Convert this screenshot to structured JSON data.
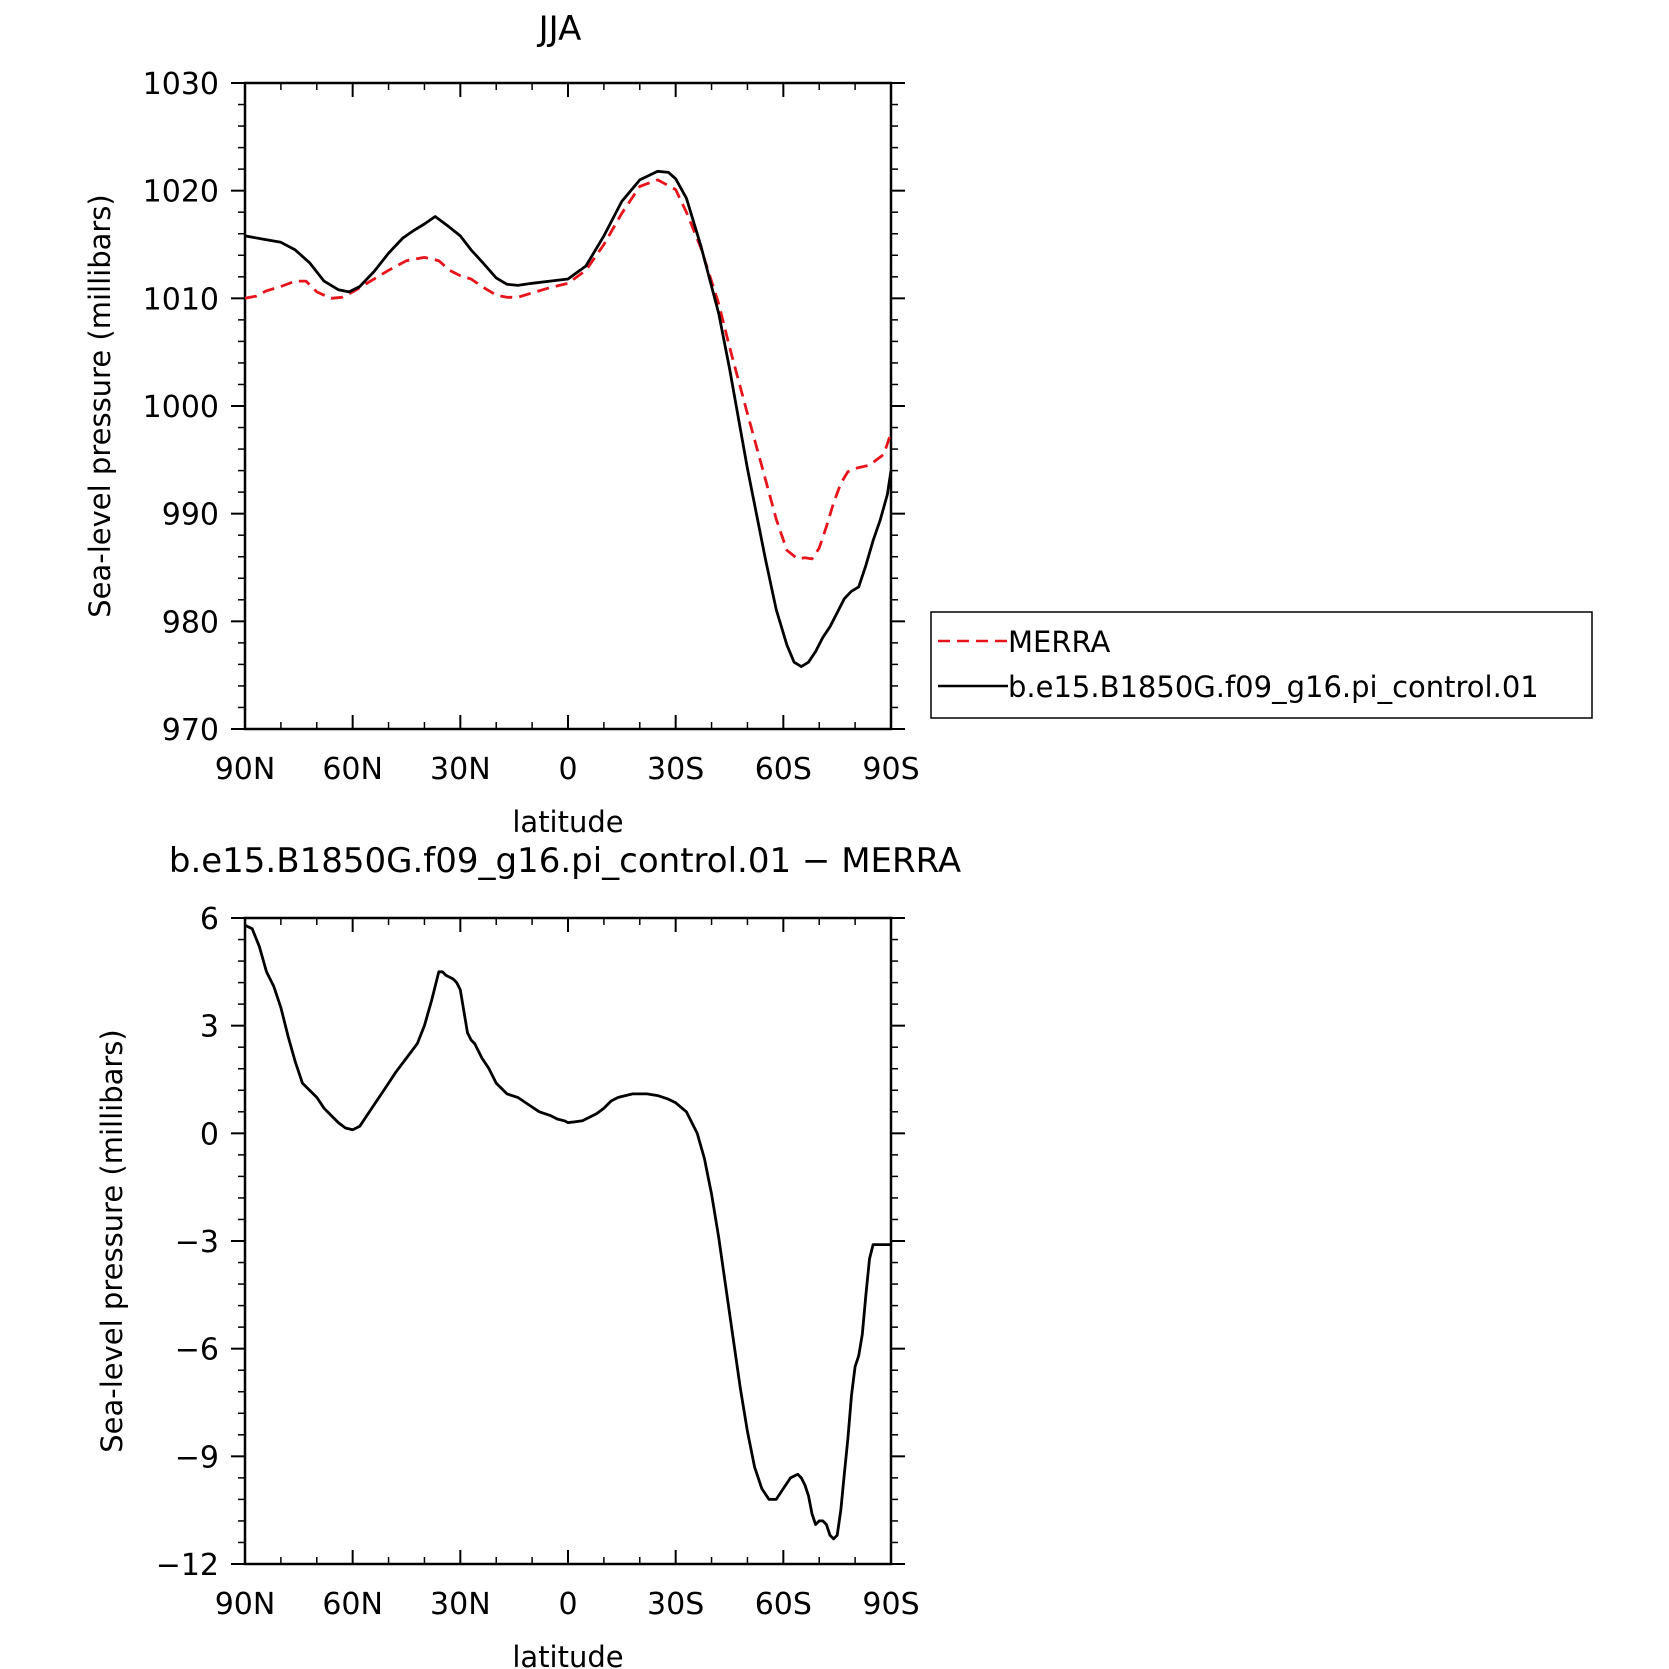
{
  "chart_data": [
    {
      "type": "line",
      "title": "JJA",
      "xlabel": "latitude",
      "ylabel": "Sea-level pressure (millibars)",
      "xlim": [
        90,
        -90
      ],
      "ylim": [
        970,
        1030
      ],
      "xticks": [
        90,
        60,
        30,
        0,
        -30,
        -60,
        -90
      ],
      "xtick_labels": [
        "90N",
        "60N",
        "30N",
        "0",
        "30S",
        "60S",
        "90S"
      ],
      "yticks": [
        970,
        980,
        990,
        1000,
        1010,
        1020,
        1030
      ],
      "ytick_labels": [
        "970",
        "980",
        "990",
        "1000",
        "1010",
        "1020",
        "1030"
      ],
      "legend": "right",
      "series": [
        {
          "name": "MERRA",
          "color": "#e8141c",
          "dash": "dashed",
          "x": [
            90,
            87,
            84,
            80,
            76,
            73,
            70,
            66,
            63,
            60,
            55,
            50,
            45,
            40,
            36,
            33,
            30,
            27,
            24,
            20,
            17,
            14,
            10,
            5,
            0,
            -5,
            -10,
            -15,
            -20,
            -25,
            -30,
            -33,
            -37,
            -42,
            -45,
            -50,
            -55,
            -58,
            -61,
            -64,
            -66,
            -68,
            -70,
            -72,
            -74,
            -76,
            -78,
            -80,
            -84,
            -88,
            -90
          ],
          "y": [
            1010,
            1010.2,
            1010.7,
            1011.1,
            1011.6,
            1011.6,
            1010.6,
            1010,
            1010.1,
            1010.6,
            1011.6,
            1012.6,
            1013.5,
            1013.8,
            1013.5,
            1012.6,
            1012.1,
            1011.8,
            1011.1,
            1010.3,
            1010.1,
            1010.1,
            1010.5,
            1011,
            1011.4,
            1012.6,
            1015,
            1017.9,
            1020.4,
            1021,
            1020.1,
            1018,
            1014.7,
            1009.5,
            1005.5,
            999.3,
            993.2,
            989.5,
            986.6,
            985.8,
            985.9,
            985.8,
            986.8,
            988.8,
            991,
            992.8,
            993.9,
            994.2,
            994.5,
            995.5,
            997.5
          ]
        },
        {
          "name": "b.e15.B1850G.f09_g16.pi_control.01",
          "color": "#000000",
          "dash": "solid",
          "x": [
            90,
            85,
            80,
            76,
            72,
            68,
            64,
            61,
            58,
            54,
            50,
            46,
            43,
            40,
            37,
            35,
            33,
            30,
            27,
            24,
            20,
            17,
            14,
            10,
            5,
            0,
            -5,
            -10,
            -15,
            -20,
            -25,
            -28,
            -30,
            -33,
            -37,
            -42,
            -45,
            -50,
            -55,
            -58,
            -61,
            -63,
            -65,
            -67,
            -69,
            -71,
            -73,
            -75,
            -77,
            -79,
            -81,
            -83,
            -85,
            -87,
            -89,
            -90
          ],
          "y": [
            1015.8,
            1015.5,
            1015.2,
            1014.5,
            1013.3,
            1011.6,
            1010.8,
            1010.6,
            1011.1,
            1012.5,
            1014.2,
            1015.6,
            1016.3,
            1016.9,
            1017.6,
            1017.1,
            1016.6,
            1015.8,
            1014.5,
            1013.4,
            1011.9,
            1011.3,
            1011.2,
            1011.4,
            1011.6,
            1011.8,
            1013,
            1015.8,
            1019,
            1021,
            1021.8,
            1021.7,
            1021.1,
            1019.3,
            1014.9,
            1008.6,
            1003.5,
            994.2,
            985.8,
            981.1,
            977.8,
            976.2,
            975.8,
            976.2,
            977.2,
            978.5,
            979.5,
            980.8,
            982.1,
            982.8,
            983.2,
            985.2,
            987.5,
            989.4,
            991.8,
            994
          ]
        }
      ]
    },
    {
      "type": "line",
      "title": "b.e15.B1850G.f09_g16.pi_control.01 − MERRA",
      "xlabel": "latitude",
      "ylabel": "Sea-level pressure (millibars)",
      "xlim": [
        90,
        -90
      ],
      "ylim": [
        -12,
        6
      ],
      "xticks": [
        90,
        60,
        30,
        0,
        -30,
        -60,
        -90
      ],
      "xtick_labels": [
        "90N",
        "60N",
        "30N",
        "0",
        "30S",
        "60S",
        "90S"
      ],
      "yticks": [
        -12,
        -9,
        -6,
        -3,
        0,
        3,
        6
      ],
      "ytick_labels": [
        "−12",
        "−9",
        "−6",
        "−3",
        "0",
        "3",
        "6"
      ],
      "series": [
        {
          "color": "#000000",
          "dash": "solid",
          "x": [
            90,
            88,
            86,
            84,
            82,
            80,
            78,
            76,
            74,
            72,
            70,
            68,
            66,
            64,
            62,
            60,
            58,
            56,
            54,
            52,
            50,
            48,
            45,
            42,
            40,
            38,
            36,
            35,
            34,
            32,
            31,
            30,
            29,
            28,
            27,
            26,
            24,
            22,
            20,
            17,
            14,
            11,
            8,
            5,
            3,
            1,
            0,
            -2,
            -4,
            -6,
            -8,
            -10,
            -12,
            -14,
            -16,
            -18,
            -20,
            -22,
            -25,
            -28,
            -30,
            -33,
            -36,
            -38,
            -40,
            -42,
            -44,
            -46,
            -48,
            -50,
            -52,
            -54,
            -56,
            -58,
            -60,
            -62,
            -64,
            -65,
            -66,
            -67,
            -68,
            -69,
            -70,
            -71,
            -72,
            -73,
            -74,
            -75,
            -76,
            -77,
            -78,
            -79,
            -80,
            -81,
            -82,
            -83,
            -84,
            -85,
            -86,
            -87,
            -88,
            -89,
            -90
          ],
          "y": [
            5.8,
            5.7,
            5.2,
            4.5,
            4.1,
            3.5,
            2.7,
            2,
            1.4,
            1.2,
            1.0,
            0.7,
            0.5,
            0.3,
            0.15,
            0.1,
            0.2,
            0.5,
            0.8,
            1.1,
            1.4,
            1.7,
            2.1,
            2.5,
            3.0,
            3.7,
            4.5,
            4.5,
            4.4,
            4.3,
            4.2,
            4.0,
            3.4,
            2.8,
            2.6,
            2.5,
            2.1,
            1.8,
            1.4,
            1.1,
            1.0,
            0.8,
            0.6,
            0.5,
            0.4,
            0.35,
            0.3,
            0.32,
            0.35,
            0.45,
            0.55,
            0.7,
            0.9,
            1.0,
            1.05,
            1.1,
            1.1,
            1.1,
            1.05,
            0.95,
            0.85,
            0.6,
            0,
            -0.7,
            -1.7,
            -2.9,
            -4.3,
            -5.7,
            -7.1,
            -8.3,
            -9.3,
            -9.9,
            -10.2,
            -10.2,
            -9.9,
            -9.6,
            -9.5,
            -9.6,
            -9.8,
            -10.1,
            -10.6,
            -10.9,
            -10.8,
            -10.8,
            -10.9,
            -11.2,
            -11.3,
            -11.2,
            -10.5,
            -9.5,
            -8.5,
            -7.3,
            -6.5,
            -6.2,
            -5.6,
            -4.5,
            -3.5,
            -3.1,
            -3.1,
            -3.1,
            -3.1,
            -3.1,
            -3.1
          ]
        }
      ]
    }
  ]
}
